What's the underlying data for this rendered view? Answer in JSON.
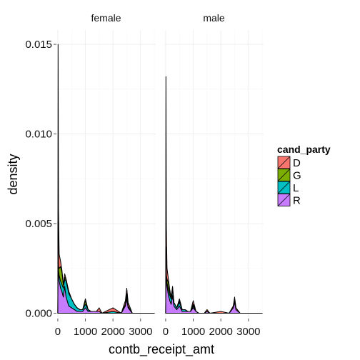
{
  "chart_data": {
    "type": "area",
    "subtype": "faceted density plot (stacked)",
    "facets": [
      "female",
      "male"
    ],
    "xlabel": "contb_receipt_amt",
    "ylabel": "density",
    "x_ticks": [
      0,
      1000,
      2000,
      3000
    ],
    "x_tick_labels": [
      "0",
      "1000",
      "2000",
      "3000"
    ],
    "y_ticks": [
      0.0,
      0.005,
      0.01,
      0.015
    ],
    "y_tick_labels": [
      "0.000",
      "0.005",
      "0.010",
      "0.015"
    ],
    "xlim": [
      -50,
      3550
    ],
    "ylim": [
      -0.0003,
      0.0158
    ],
    "grid": true,
    "legend": {
      "title": "cand_party",
      "position": "right",
      "entries": [
        {
          "label": "D",
          "color": "#F8766D"
        },
        {
          "label": "G",
          "color": "#7CAE00"
        },
        {
          "label": "L",
          "color": "#00BFC4"
        },
        {
          "label": "R",
          "color": "#C77CFF"
        }
      ]
    },
    "panels": [
      {
        "facet": "female",
        "series": [
          {
            "name": "R",
            "x": [
              0,
              10,
              25,
              50,
              100,
              150,
              200,
              250,
              300,
              400,
              500,
              600,
              700,
              800,
              900,
              1000,
              1100,
              1200,
              1400,
              1500,
              1600,
              2000,
              2300,
              2450,
              2500,
              2550,
              2700,
              3500
            ],
            "y": [
              0,
              0.0048,
              0.0022,
              0.0018,
              0.0014,
              0.0012,
              0.0009,
              0.0015,
              0.0009,
              0.0004,
              0.0003,
              0.0002,
              0.0001,
              0.0001,
              0.0001,
              0.0003,
              0.0001,
              0.0001,
              0.0001,
              0.0001,
              0,
              0,
              0,
              0.0004,
              0.0008,
              0.0003,
              0,
              0
            ]
          },
          {
            "name": "L",
            "x": [
              0,
              10,
              25,
              50,
              100,
              150,
              200,
              250,
              300,
              400,
              500,
              600,
              700,
              800,
              900,
              1000,
              1100,
              1200,
              1400,
              1500,
              1600,
              2000,
              2300,
              2450,
              2500,
              2550,
              2700,
              3500
            ],
            "y": [
              0,
              0.0002,
              0.0002,
              0.0003,
              0.0004,
              0.0004,
              0.0005,
              0.0004,
              0.0009,
              0.0007,
              0.0005,
              0.0003,
              0.0002,
              0.0001,
              0.0001,
              0.0002,
              0.0001,
              0,
              0,
              0,
              0,
              0.0001,
              0,
              0.0001,
              0.0002,
              0.0001,
              0,
              0
            ]
          },
          {
            "name": "G",
            "x": [
              0,
              10,
              25,
              50,
              100,
              150,
              200,
              250,
              300,
              400,
              500,
              600,
              700,
              800,
              900,
              1000,
              1100,
              1200,
              1400,
              1500,
              1600,
              2000,
              2300,
              2450,
              2500,
              2550,
              2700,
              3500
            ],
            "y": [
              0,
              0.0001,
              0.0002,
              0.0004,
              0.0008,
              0.0007,
              0.0002,
              0.0001,
              0.0001,
              0.0001,
              0,
              0,
              0,
              0,
              0,
              0.0002,
              0,
              0,
              0,
              0,
              0,
              0,
              0,
              0,
              0.0001,
              0,
              0,
              0
            ]
          },
          {
            "name": "D",
            "x": [
              0,
              10,
              25,
              50,
              100,
              150,
              200,
              250,
              300,
              400,
              500,
              600,
              700,
              800,
              900,
              1000,
              1100,
              1200,
              1400,
              1500,
              1600,
              2000,
              2300,
              2450,
              2500,
              2550,
              2700,
              3500
            ],
            "y": [
              0,
              0.0099,
              0.0032,
              0.0008,
              0.0003,
              0.0001,
              0,
              0.0002,
              0,
              0,
              0,
              0,
              0,
              0,
              0,
              0.0001,
              0,
              0,
              0,
              0.0002,
              0,
              0.0002,
              0,
              0.0002,
              0.0003,
              0.0002,
              0,
              0
            ]
          }
        ]
      },
      {
        "facet": "male",
        "series": [
          {
            "name": "R",
            "x": [
              0,
              10,
              25,
              50,
              100,
              150,
              200,
              250,
              300,
              400,
              500,
              600,
              700,
              800,
              900,
              1000,
              1100,
              1200,
              1400,
              1500,
              1600,
              2000,
              2300,
              2450,
              2500,
              2550,
              2700,
              3500
            ],
            "y": [
              0,
              0.0035,
              0.0018,
              0.0015,
              0.001,
              0.0007,
              0.0005,
              0.001,
              0.0004,
              0.0002,
              0.0004,
              0.0001,
              0.0001,
              0.0001,
              0.0001,
              0.0003,
              0.0001,
              0,
              0,
              0.0001,
              0,
              0,
              0,
              0.0003,
              0.0006,
              0.0002,
              0,
              0
            ]
          },
          {
            "name": "L",
            "x": [
              0,
              10,
              25,
              50,
              100,
              150,
              200,
              250,
              300,
              400,
              500,
              600,
              700,
              800,
              900,
              1000,
              1100,
              1200,
              1400,
              1500,
              1600,
              2000,
              2300,
              2450,
              2500,
              2550,
              2700,
              3500
            ],
            "y": [
              0,
              0.0001,
              0.0002,
              0.0002,
              0.0003,
              0.0003,
              0.0003,
              0.0003,
              0.0002,
              0.0001,
              0.0002,
              0.0001,
              0.0001,
              0,
              0,
              0.0001,
              0,
              0,
              0,
              0,
              0,
              0,
              0,
              0,
              0.0001,
              0,
              0,
              0
            ]
          },
          {
            "name": "G",
            "x": [
              0,
              10,
              25,
              50,
              100,
              150,
              200,
              250,
              300,
              400,
              500,
              600,
              700,
              800,
              900,
              1000,
              1100,
              1200,
              1400,
              1500,
              1600,
              2000,
              2300,
              2450,
              2500,
              2550,
              2700,
              3500
            ],
            "y": [
              0,
              0.0001,
              0.0001,
              0.0002,
              0.0004,
              0.0002,
              0.0001,
              0.0001,
              0,
              0,
              0.0001,
              0,
              0,
              0,
              0,
              0.0001,
              0,
              0,
              0,
              0,
              0,
              0,
              0,
              0,
              0,
              0,
              0,
              0
            ]
          },
          {
            "name": "D",
            "x": [
              0,
              10,
              25,
              50,
              100,
              150,
              200,
              250,
              300,
              400,
              500,
              600,
              700,
              800,
              900,
              1000,
              1100,
              1200,
              1400,
              1500,
              1600,
              2000,
              2300,
              2450,
              2500,
              2550,
              2700,
              3500
            ],
            "y": [
              0,
              0.0095,
              0.0028,
              0.0006,
              0.0002,
              0.0001,
              0,
              0.0001,
              0,
              0,
              0.0001,
              0,
              0,
              0,
              0,
              0.0002,
              0,
              0,
              0,
              0.0001,
              0,
              0.0001,
              0,
              0.0001,
              0.0002,
              0.0001,
              0,
              0
            ]
          }
        ]
      }
    ]
  }
}
